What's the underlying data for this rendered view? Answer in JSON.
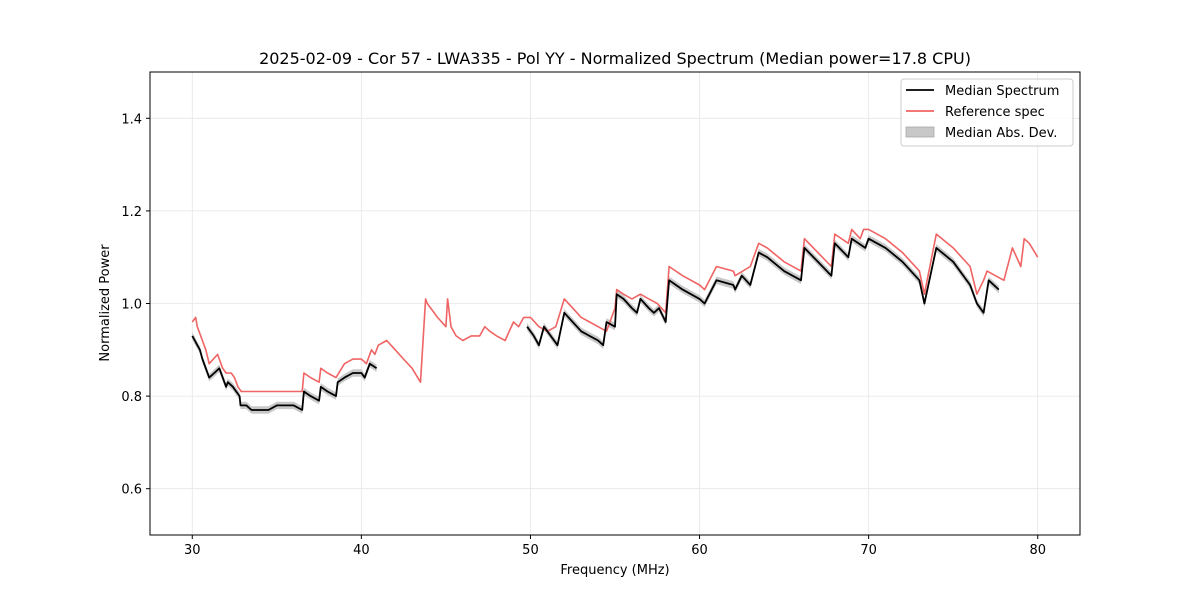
{
  "chart_data": {
    "type": "line",
    "title": "2025-02-09 - Cor 57 - LWA335 - Pol YY - Normalized Spectrum (Median power=17.8 CPU)",
    "xlabel": "Frequency (MHz)",
    "ylabel": "Normalized Power",
    "xlim": [
      27.5,
      82.5
    ],
    "ylim": [
      0.5,
      1.5
    ],
    "xticks": [
      30,
      40,
      50,
      60,
      70,
      80
    ],
    "yticks": [
      0.6,
      0.8,
      1.0,
      1.2,
      1.4
    ],
    "xtick_labels": [
      "30",
      "40",
      "50",
      "60",
      "70",
      "80"
    ],
    "ytick_labels": [
      "0.6",
      "0.8",
      "1.0",
      "1.2",
      "1.4"
    ],
    "grid": true,
    "legend_position": "top-right",
    "legend": [
      "Median Spectrum",
      "Reference spec",
      "Median Abs. Dev."
    ],
    "colors": {
      "median": "#000000",
      "reference": "#f06464",
      "mad": "#c8c8c8"
    },
    "series": [
      {
        "name": "Median Spectrum",
        "segments": [
          {
            "x": [
              30.0,
              30.15,
              30.3,
              30.45,
              30.6,
              30.8,
              31.0,
              31.3,
              31.6,
              31.8,
              32.0,
              32.1,
              32.4,
              32.6,
              32.8,
              32.85,
              33.2,
              33.5,
              34.0,
              34.5,
              35.0,
              35.5,
              36.0,
              36.5,
              36.6,
              37.0,
              37.5,
              37.6,
              38.0,
              38.5,
              38.6,
              39.0,
              39.5,
              40.0,
              40.2,
              40.5,
              40.9
            ],
            "y": [
              0.93,
              0.92,
              0.91,
              0.9,
              0.88,
              0.86,
              0.84,
              0.85,
              0.86,
              0.84,
              0.82,
              0.83,
              0.82,
              0.81,
              0.8,
              0.78,
              0.78,
              0.77,
              0.77,
              0.77,
              0.78,
              0.78,
              0.78,
              0.77,
              0.81,
              0.8,
              0.79,
              0.82,
              0.81,
              0.8,
              0.83,
              0.84,
              0.85,
              0.85,
              0.84,
              0.87,
              0.86
            ]
          },
          {
            "x": [
              49.8,
              50.2,
              50.5,
              50.8,
              51.2,
              51.6,
              52.0,
              52.5,
              53.0,
              53.5,
              54.0,
              54.3,
              54.5,
              55.0,
              55.1,
              55.5,
              56.0,
              56.3,
              56.5,
              57.0,
              57.3,
              57.6,
              58.0,
              58.2,
              59.0,
              60.0,
              60.3,
              61.0,
              62.0,
              62.1,
              62.5,
              63.0,
              63.5,
              64.0,
              65.0,
              66.0,
              66.2,
              67.0,
              67.8,
              68.0,
              68.8,
              69.0,
              69.8,
              70.0,
              71.0,
              72.0,
              73.0,
              73.3,
              74.0,
              75.0,
              76.0,
              76.4,
              76.8,
              77.1,
              77.7
            ],
            "y": [
              0.95,
              0.93,
              0.91,
              0.95,
              0.93,
              0.91,
              0.98,
              0.96,
              0.94,
              0.93,
              0.92,
              0.91,
              0.96,
              0.95,
              1.02,
              1.01,
              0.99,
              0.98,
              1.01,
              0.99,
              0.98,
              0.99,
              0.96,
              1.05,
              1.03,
              1.01,
              1.0,
              1.05,
              1.04,
              1.03,
              1.06,
              1.04,
              1.11,
              1.1,
              1.07,
              1.05,
              1.12,
              1.09,
              1.06,
              1.13,
              1.1,
              1.14,
              1.12,
              1.14,
              1.12,
              1.09,
              1.05,
              1.0,
              1.12,
              1.09,
              1.04,
              1.0,
              0.98,
              1.05,
              1.03
            ]
          }
        ]
      },
      {
        "name": "Reference spec",
        "x": [
          30.0,
          30.2,
          30.3,
          30.5,
          30.8,
          31.0,
          31.5,
          31.8,
          32.0,
          32.3,
          32.5,
          32.7,
          32.9,
          33.5,
          34.0,
          35.0,
          36.0,
          36.5,
          36.6,
          37.0,
          37.5,
          37.6,
          38.0,
          38.5,
          39.0,
          39.5,
          40.0,
          40.3,
          40.6,
          40.8,
          41.0,
          41.5,
          42.0,
          42.5,
          43.0,
          43.5,
          43.8,
          43.9,
          44.5,
          45.0,
          45.1,
          45.3,
          45.6,
          46.0,
          46.5,
          47.0,
          47.3,
          47.6,
          48.0,
          48.5,
          49.0,
          49.3,
          49.6,
          50.0,
          50.5,
          51.0,
          51.5,
          52.0,
          52.5,
          53.0,
          53.5,
          54.0,
          54.5,
          55.0,
          55.1,
          55.5,
          56.0,
          56.5,
          57.0,
          57.5,
          58.0,
          58.2,
          59.0,
          60.0,
          60.3,
          61.0,
          62.0,
          62.1,
          63.0,
          63.5,
          64.0,
          65.0,
          66.0,
          66.2,
          67.0,
          67.8,
          68.0,
          68.8,
          69.0,
          69.5,
          69.7,
          70.0,
          71.0,
          72.0,
          73.0,
          73.3,
          74.0,
          75.0,
          76.0,
          76.4,
          76.8,
          77.0,
          77.5,
          78.0,
          78.5,
          79.0,
          79.2,
          79.5,
          80.0
        ],
        "y": [
          0.96,
          0.97,
          0.95,
          0.93,
          0.9,
          0.87,
          0.89,
          0.86,
          0.85,
          0.85,
          0.84,
          0.82,
          0.81,
          0.81,
          0.81,
          0.81,
          0.81,
          0.81,
          0.85,
          0.84,
          0.83,
          0.86,
          0.85,
          0.84,
          0.87,
          0.88,
          0.88,
          0.87,
          0.9,
          0.89,
          0.91,
          0.92,
          0.9,
          0.88,
          0.86,
          0.83,
          1.01,
          1.0,
          0.97,
          0.95,
          1.01,
          0.95,
          0.93,
          0.92,
          0.93,
          0.93,
          0.95,
          0.94,
          0.93,
          0.92,
          0.96,
          0.95,
          0.97,
          0.97,
          0.95,
          0.94,
          0.95,
          1.01,
          0.99,
          0.97,
          0.96,
          0.95,
          0.94,
          0.99,
          1.03,
          1.02,
          1.01,
          1.02,
          1.01,
          1.0,
          0.98,
          1.08,
          1.06,
          1.04,
          1.03,
          1.08,
          1.07,
          1.06,
          1.08,
          1.13,
          1.12,
          1.09,
          1.07,
          1.14,
          1.11,
          1.08,
          1.15,
          1.13,
          1.16,
          1.14,
          1.16,
          1.16,
          1.14,
          1.11,
          1.07,
          1.02,
          1.15,
          1.12,
          1.08,
          1.02,
          1.05,
          1.07,
          1.06,
          1.05,
          1.12,
          1.08,
          1.14,
          1.13,
          1.1
        ]
      }
    ]
  }
}
